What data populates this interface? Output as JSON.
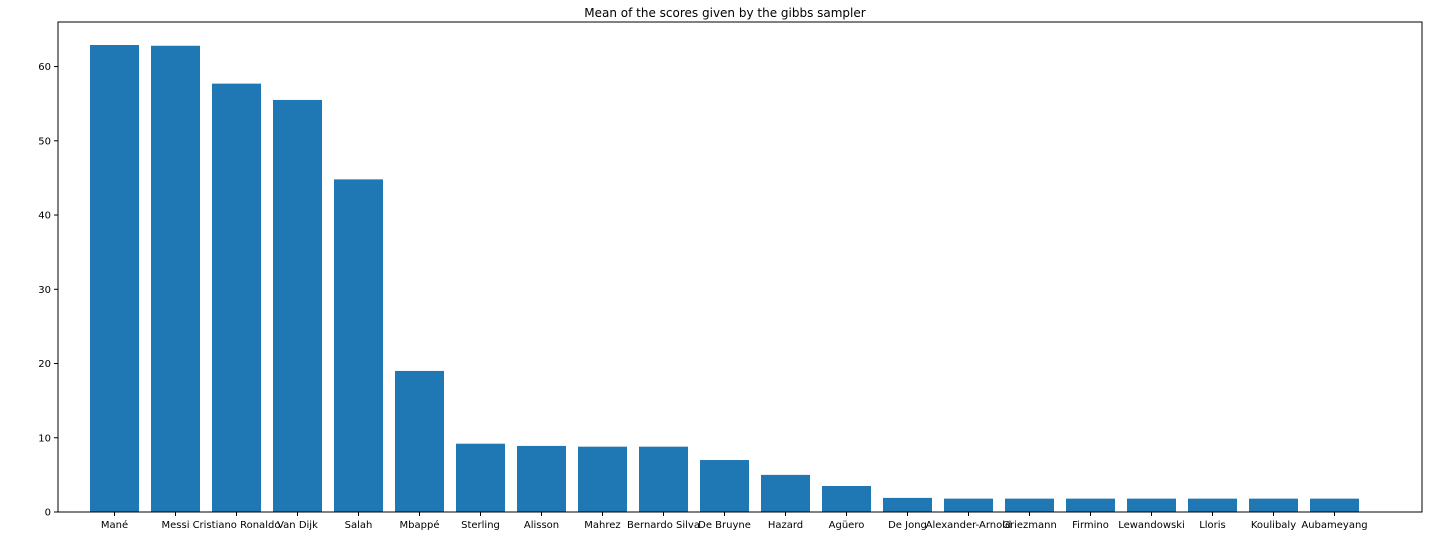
{
  "chart_data": {
    "type": "bar",
    "title": "Mean of the scores given by the gibbs sampler",
    "xlabel": "",
    "ylabel": "",
    "ylim": [
      0,
      66
    ],
    "yticks": [
      0,
      10,
      20,
      30,
      40,
      50,
      60
    ],
    "grid": false,
    "bar_color": "#1f77b4",
    "categories": [
      "Mané",
      "Messi",
      "Cristiano Ronaldo",
      "Van Dijk",
      "Salah",
      "Mbappé",
      "Sterling",
      "Alisson",
      "Mahrez",
      "Bernardo Silva",
      "De Bruyne",
      "Hazard",
      "Agüero",
      "De Jong",
      "Alexander-Arnold",
      "Griezmann",
      "Firmino",
      "Lewandowski",
      "Lloris",
      "Koulibaly",
      "Aubameyang"
    ],
    "values": [
      62.9,
      62.8,
      57.7,
      55.5,
      44.8,
      19.0,
      9.2,
      8.9,
      8.8,
      8.8,
      7.0,
      5.0,
      3.5,
      1.9,
      1.8,
      1.8,
      1.8,
      1.8,
      1.8,
      1.8,
      1.8
    ]
  }
}
